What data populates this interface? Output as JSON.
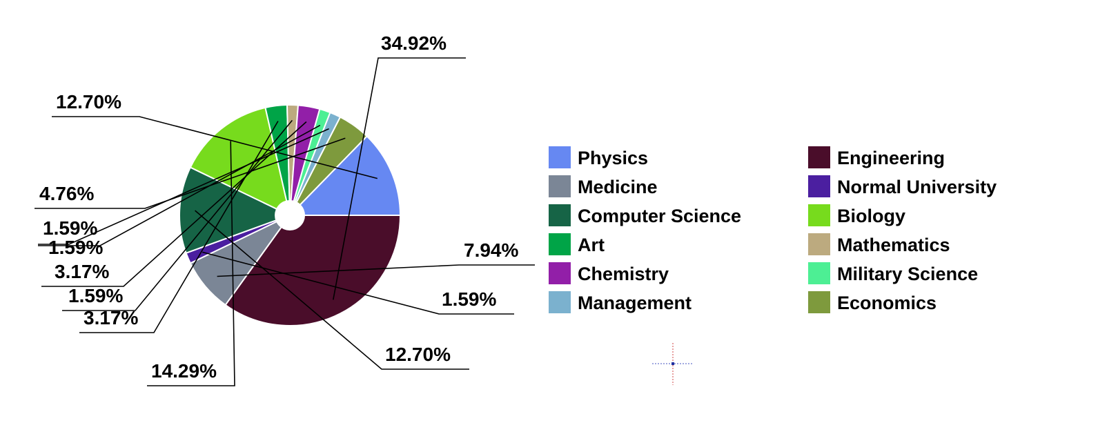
{
  "chart_data": {
    "type": "pie",
    "title": "",
    "slices": [
      {
        "name": "Engineering",
        "value": 34.92,
        "label": "34.92%",
        "color": "#4a0d2a"
      },
      {
        "name": "Medicine",
        "value": 7.94,
        "label": "7.94%",
        "color": "#7b8696"
      },
      {
        "name": "Normal University",
        "value": 1.59,
        "label": "1.59%",
        "color": "#4b1fa0"
      },
      {
        "name": "Computer Science",
        "value": 12.7,
        "label": "12.70%",
        "color": "#166446"
      },
      {
        "name": "Biology",
        "value": 14.29,
        "label": "14.29%",
        "color": "#77db1d"
      },
      {
        "name": "Art",
        "value": 3.17,
        "label": "3.17%",
        "color": "#00a447"
      },
      {
        "name": "Mathematics",
        "value": 1.59,
        "label": "1.59%",
        "color": "#bcaa7f"
      },
      {
        "name": "Chemistry",
        "value": 3.17,
        "label": "3.17%",
        "color": "#921fa8"
      },
      {
        "name": "Military Science",
        "value": 1.59,
        "label": "1.59%",
        "color": "#4def94"
      },
      {
        "name": "Management",
        "value": 1.59,
        "label": "1.59%",
        "color": "#7bb1ce"
      },
      {
        "name": "Economics",
        "value": 4.76,
        "label": "4.76%",
        "color": "#7e9a3d"
      },
      {
        "name": "Physics",
        "value": 12.7,
        "label": "12.70%",
        "color": "#6688f2"
      }
    ],
    "legend": {
      "placement": "right",
      "columns": [
        [
          "Physics",
          "Medicine",
          "Computer Science",
          "Art",
          "Chemistry",
          "Management"
        ],
        [
          "Engineering",
          "Normal University",
          "Biology",
          "Mathematics",
          "Military Science",
          "Economics"
        ]
      ]
    },
    "donut_hole": true
  }
}
